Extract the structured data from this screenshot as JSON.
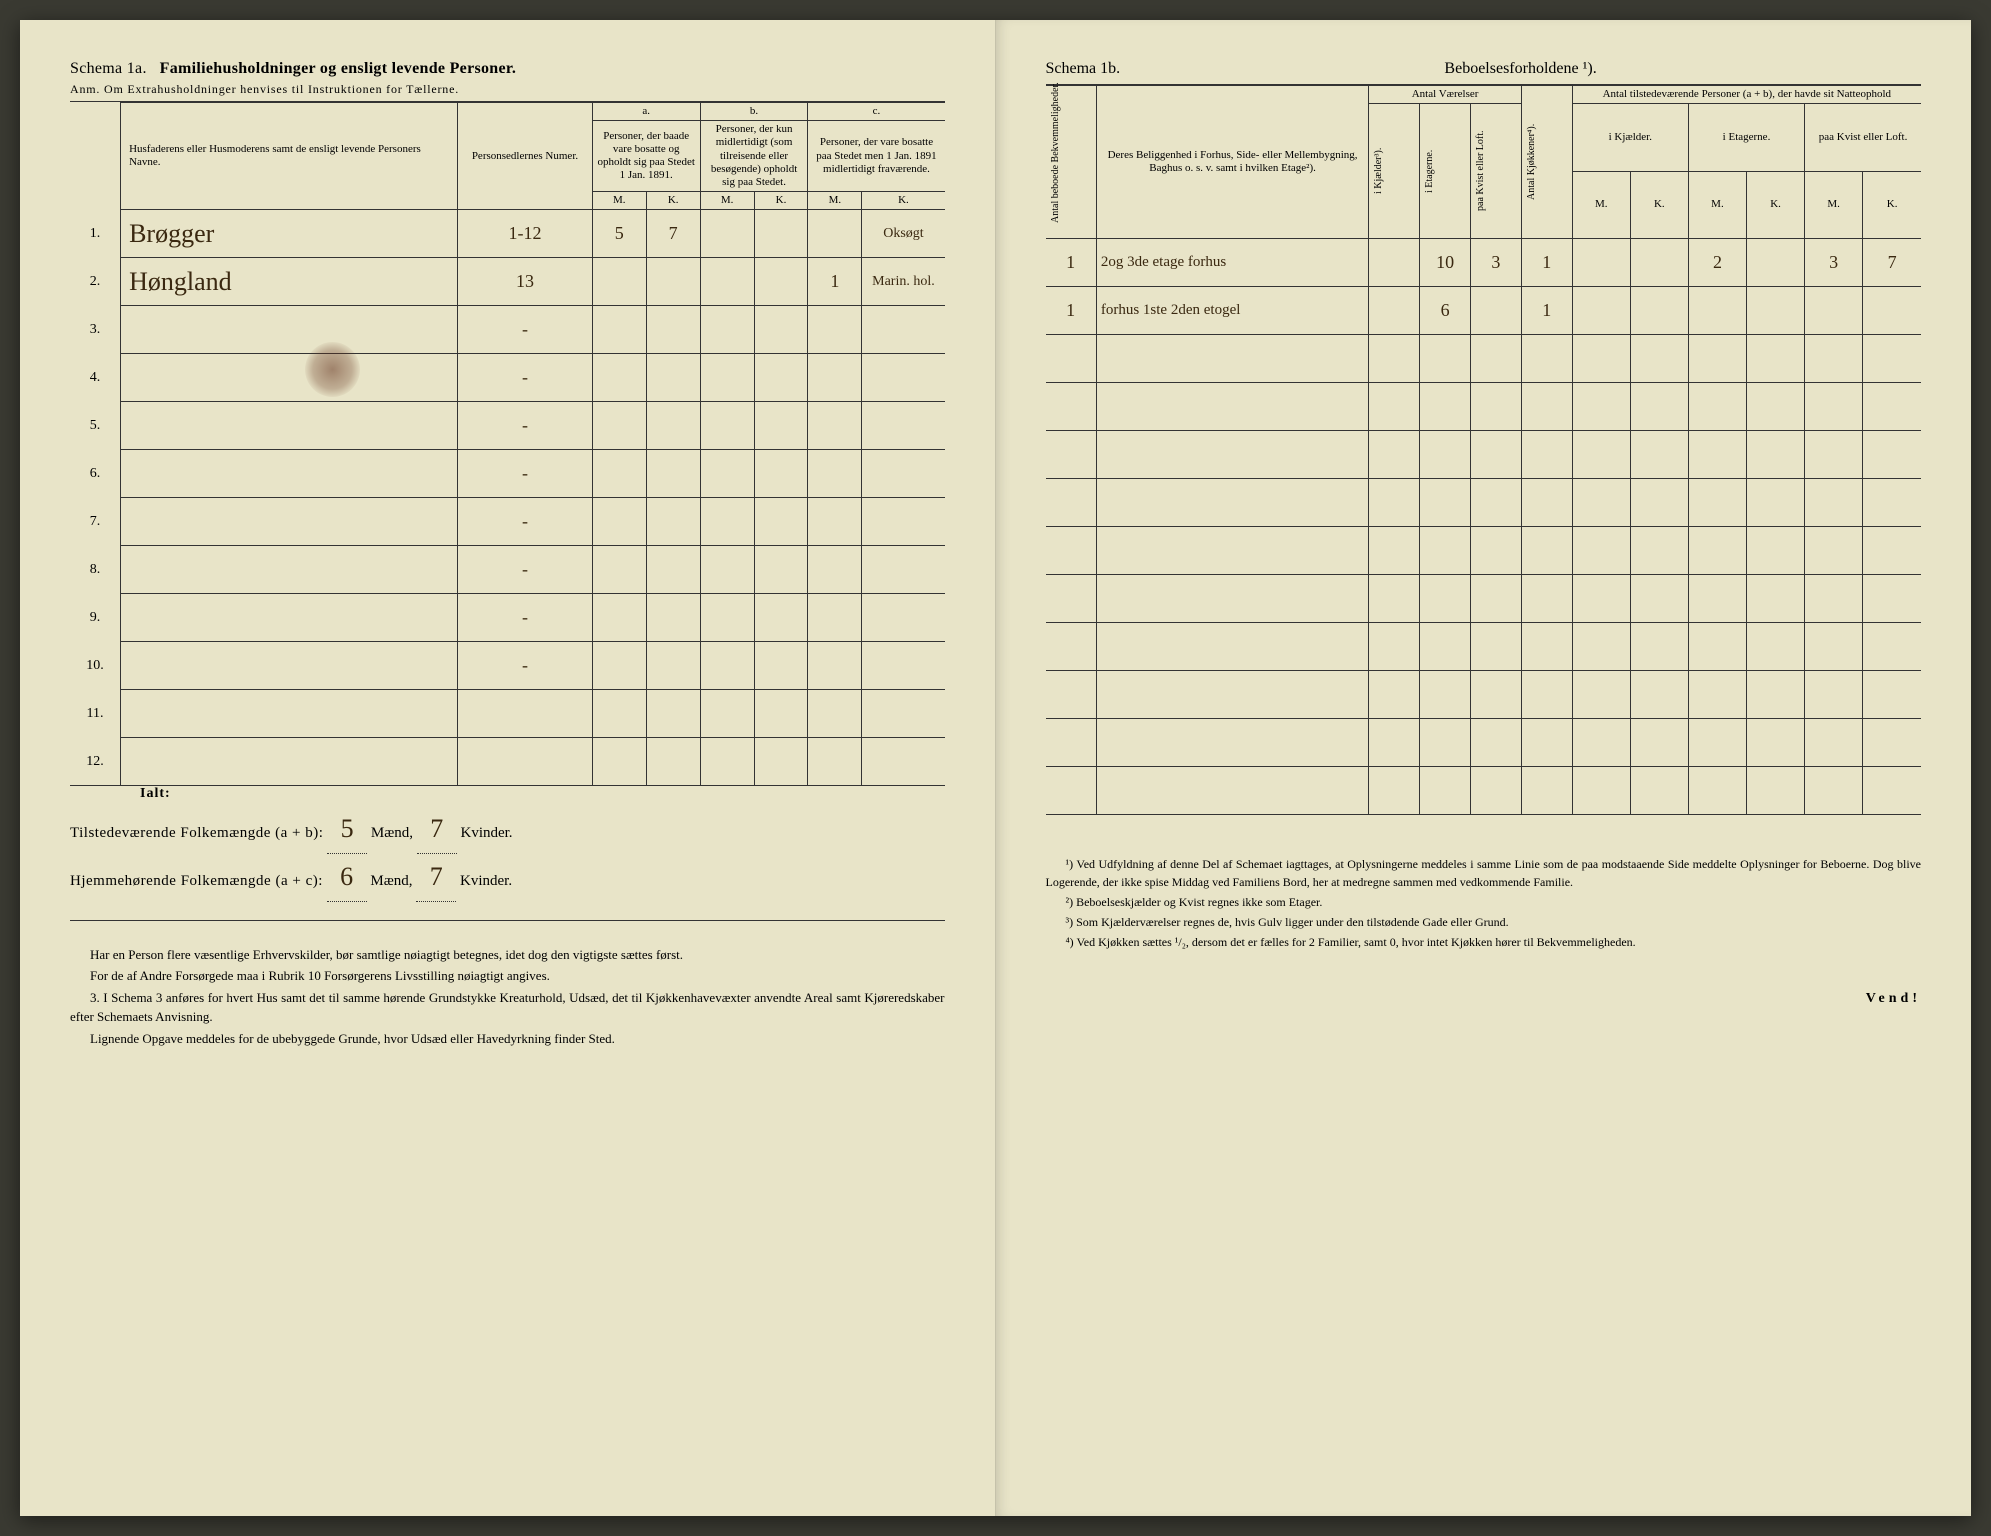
{
  "left": {
    "schema_label": "Schema 1a.",
    "schema_title": "Familiehusholdninger og ensligt levende Personer.",
    "anm": "Anm. Om Extrahusholdninger henvises til Instruktionen for Tællerne.",
    "head_name": "Husfaderens eller Husmoderens samt de ensligt levende Personers Navne.",
    "head_number": "Personsedlernes Numer.",
    "col_a_letter": "a.",
    "col_a": "Personer, der baade vare bosatte og opholdt sig paa Stedet 1 Jan. 1891.",
    "col_b_letter": "b.",
    "col_b": "Personer, der kun midlertidigt (som tilreisende eller besøgende) opholdt sig paa Stedet.",
    "col_c_letter": "c.",
    "col_c": "Personer, der vare bosatte paa Stedet men 1 Jan. 1891 midlertidigt fraværende.",
    "mk_m": "M.",
    "mk_k": "K.",
    "rows": [
      {
        "n": "1.",
        "name": "Brøgger",
        "num": "1-12",
        "a_m": "5",
        "a_k": "7",
        "b_m": "",
        "b_k": "",
        "c_m": "",
        "c_k": "Oksøgt"
      },
      {
        "n": "2.",
        "name": "Høngland",
        "num": "13",
        "a_m": "",
        "a_k": "",
        "b_m": "",
        "b_k": "",
        "c_m": "1",
        "c_k": "Marin. hol."
      },
      {
        "n": "3.",
        "name": "",
        "num": "-",
        "a_m": "",
        "a_k": "",
        "b_m": "",
        "b_k": "",
        "c_m": "",
        "c_k": ""
      },
      {
        "n": "4.",
        "name": "",
        "num": "-",
        "a_m": "",
        "a_k": "",
        "b_m": "",
        "b_k": "",
        "c_m": "",
        "c_k": ""
      },
      {
        "n": "5.",
        "name": "",
        "num": "-",
        "a_m": "",
        "a_k": "",
        "b_m": "",
        "b_k": "",
        "c_m": "",
        "c_k": ""
      },
      {
        "n": "6.",
        "name": "",
        "num": "-",
        "a_m": "",
        "a_k": "",
        "b_m": "",
        "b_k": "",
        "c_m": "",
        "c_k": ""
      },
      {
        "n": "7.",
        "name": "",
        "num": "-",
        "a_m": "",
        "a_k": "",
        "b_m": "",
        "b_k": "",
        "c_m": "",
        "c_k": ""
      },
      {
        "n": "8.",
        "name": "",
        "num": "-",
        "a_m": "",
        "a_k": "",
        "b_m": "",
        "b_k": "",
        "c_m": "",
        "c_k": ""
      },
      {
        "n": "9.",
        "name": "",
        "num": "-",
        "a_m": "",
        "a_k": "",
        "b_m": "",
        "b_k": "",
        "c_m": "",
        "c_k": ""
      },
      {
        "n": "10.",
        "name": "",
        "num": "-",
        "a_m": "",
        "a_k": "",
        "b_m": "",
        "b_k": "",
        "c_m": "",
        "c_k": ""
      },
      {
        "n": "11.",
        "name": "",
        "num": "",
        "a_m": "",
        "a_k": "",
        "b_m": "",
        "b_k": "",
        "c_m": "",
        "c_k": ""
      },
      {
        "n": "12.",
        "name": "",
        "num": "",
        "a_m": "",
        "a_k": "",
        "b_m": "",
        "b_k": "",
        "c_m": "",
        "c_k": ""
      }
    ],
    "ialt": "Ialt:",
    "tot1_label": "Tilstedeværende Folkemængde (a + b):",
    "tot1_m": "5",
    "tot1_k": "7",
    "tot2_label": "Hjemmehørende Folkemængde (a + c):",
    "tot2_m": "6",
    "tot2_k": "7",
    "maend": "Mænd,",
    "kvinder": "Kvinder.",
    "foot1": "Har en Person flere væsentlige Erhvervskilder, bør samtlige nøiagtigt betegnes, idet dog den vigtigste sættes først.",
    "foot2": "For de af Andre Forsørgede maa i Rubrik 10 Forsørgerens Livsstilling nøiagtigt angives.",
    "foot3_num": "3.",
    "foot3": "I Schema 3 anføres for hvert Hus samt det til samme hørende Grundstykke Kreaturhold, Udsæd, det til Kjøkkenhavevæxter anvendte Areal samt Kjøreredskaber efter Schemaets Anvisning.",
    "foot4": "Lignende Opgave meddeles for de ubebyggede Grunde, hvor Udsæd eller Havedyrkning finder Sted."
  },
  "right": {
    "schema_label": "Schema 1b.",
    "schema_title": "Beboelsesforholdene ¹).",
    "h_bekvem": "Antal beboede Bekvemmeligheder.",
    "h_beligg": "Deres Beliggenhed i Forhus, Side- eller Mellembygning, Baghus o. s. v. samt i hvilken Etage²).",
    "h_vaerelser": "Antal Værelser",
    "h_kjaelder": "i Kjælder³).",
    "h_etagerne": "i Etagerne.",
    "h_kvist": "paa Kvist eller Loft.",
    "h_kjokken": "Antal Kjøkkener⁴).",
    "h_natteophold": "Antal tilstedeværende Personer (a + b), der havde sit Natteophold",
    "h_natt_kj": "i Kjælder.",
    "h_natt_et": "i Etagerne.",
    "h_natt_kv": "paa Kvist eller Loft.",
    "mk_m": "M.",
    "mk_k": "K.",
    "rows": [
      {
        "bk": "1",
        "loc": "2og 3de etage forhus",
        "kj": "",
        "et": "10",
        "kv": "3",
        "kk": "1",
        "nkj_m": "",
        "nkj_k": "",
        "net_m": "2",
        "net_k": "",
        "nkv_m": "3",
        "nkv_k": "7"
      },
      {
        "bk": "1",
        "loc": "forhus 1ste 2den etogel",
        "kj": "",
        "et": "6",
        "kv": "",
        "kk": "1",
        "nkj_m": "",
        "nkj_k": "",
        "net_m": "",
        "net_k": "",
        "nkv_m": "",
        "nkv_k": ""
      },
      {
        "bk": "",
        "loc": "",
        "kj": "",
        "et": "",
        "kv": "",
        "kk": "",
        "nkj_m": "",
        "nkj_k": "",
        "net_m": "",
        "net_k": "",
        "nkv_m": "",
        "nkv_k": ""
      },
      {
        "bk": "",
        "loc": "",
        "kj": "",
        "et": "",
        "kv": "",
        "kk": "",
        "nkj_m": "",
        "nkj_k": "",
        "net_m": "",
        "net_k": "",
        "nkv_m": "",
        "nkv_k": ""
      },
      {
        "bk": "",
        "loc": "",
        "kj": "",
        "et": "",
        "kv": "",
        "kk": "",
        "nkj_m": "",
        "nkj_k": "",
        "net_m": "",
        "net_k": "",
        "nkv_m": "",
        "nkv_k": ""
      },
      {
        "bk": "",
        "loc": "",
        "kj": "",
        "et": "",
        "kv": "",
        "kk": "",
        "nkj_m": "",
        "nkj_k": "",
        "net_m": "",
        "net_k": "",
        "nkv_m": "",
        "nkv_k": ""
      },
      {
        "bk": "",
        "loc": "",
        "kj": "",
        "et": "",
        "kv": "",
        "kk": "",
        "nkj_m": "",
        "nkj_k": "",
        "net_m": "",
        "net_k": "",
        "nkv_m": "",
        "nkv_k": ""
      },
      {
        "bk": "",
        "loc": "",
        "kj": "",
        "et": "",
        "kv": "",
        "kk": "",
        "nkj_m": "",
        "nkj_k": "",
        "net_m": "",
        "net_k": "",
        "nkv_m": "",
        "nkv_k": ""
      },
      {
        "bk": "",
        "loc": "",
        "kj": "",
        "et": "",
        "kv": "",
        "kk": "",
        "nkj_m": "",
        "nkj_k": "",
        "net_m": "",
        "net_k": "",
        "nkv_m": "",
        "nkv_k": ""
      },
      {
        "bk": "",
        "loc": "",
        "kj": "",
        "et": "",
        "kv": "",
        "kk": "",
        "nkj_m": "",
        "nkj_k": "",
        "net_m": "",
        "net_k": "",
        "nkv_m": "",
        "nkv_k": ""
      },
      {
        "bk": "",
        "loc": "",
        "kj": "",
        "et": "",
        "kv": "",
        "kk": "",
        "nkj_m": "",
        "nkj_k": "",
        "net_m": "",
        "net_k": "",
        "nkv_m": "",
        "nkv_k": ""
      },
      {
        "bk": "",
        "loc": "",
        "kj": "",
        "et": "",
        "kv": "",
        "kk": "",
        "nkj_m": "",
        "nkj_k": "",
        "net_m": "",
        "net_k": "",
        "nkv_m": "",
        "nkv_k": ""
      }
    ],
    "foot1": "¹) Ved Udfyldning af denne Del af Schemaet iagttages, at Oplysningerne meddeles i samme Linie som de paa modstaaende Side meddelte Oplysninger for Beboerne. Dog blive Logerende, der ikke spise Middag ved Familiens Bord, her at medregne sammen med vedkommende Familie.",
    "foot2": "²) Beboelseskjælder og Kvist regnes ikke som Etager.",
    "foot3": "³) Som Kjælderværelser regnes de, hvis Gulv ligger under den tilstødende Gade eller Grund.",
    "foot4": "⁴) Ved Kjøkken sættes ¹/₂, dersom det er fælles for 2 Familier, samt 0, hvor intet Kjøkken hører til Bekvemmeligheden.",
    "vend": "Vend!"
  }
}
